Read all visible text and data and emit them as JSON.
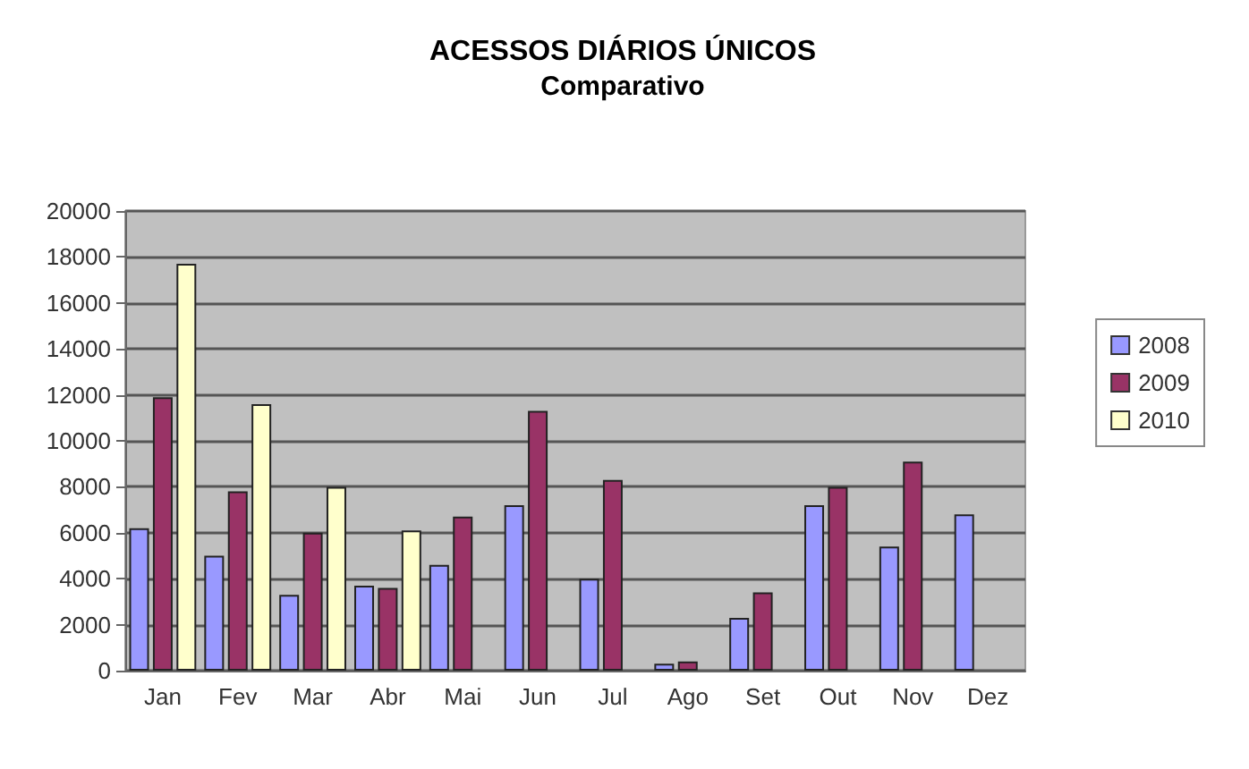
{
  "chart_data": {
    "type": "bar",
    "title": "ACESSOS DIÁRIOS ÚNICOS",
    "subtitle": "Comparativo",
    "categories": [
      "Jan",
      "Fev",
      "Mar",
      "Abr",
      "Mai",
      "Jun",
      "Jul",
      "Ago",
      "Set",
      "Out",
      "Nov",
      "Dez"
    ],
    "series": [
      {
        "name": "2008",
        "color": "#9999ff",
        "values": [
          6200,
          5000,
          3300,
          3700,
          4600,
          7200,
          4000,
          300,
          2300,
          7200,
          5400,
          6800
        ]
      },
      {
        "name": "2009",
        "color": "#993366",
        "values": [
          11900,
          7800,
          6000,
          3600,
          6700,
          11300,
          8300,
          400,
          3400,
          8000,
          9100,
          null
        ]
      },
      {
        "name": "2010",
        "color": "#ffffcc",
        "values": [
          17700,
          11600,
          8000,
          6100,
          null,
          null,
          null,
          null,
          null,
          null,
          null,
          null
        ]
      }
    ],
    "ylim": [
      0,
      20000
    ],
    "yticks": [
      0,
      2000,
      4000,
      6000,
      8000,
      10000,
      12000,
      14000,
      16000,
      18000,
      20000
    ],
    "grid": "y",
    "legend": "right"
  }
}
